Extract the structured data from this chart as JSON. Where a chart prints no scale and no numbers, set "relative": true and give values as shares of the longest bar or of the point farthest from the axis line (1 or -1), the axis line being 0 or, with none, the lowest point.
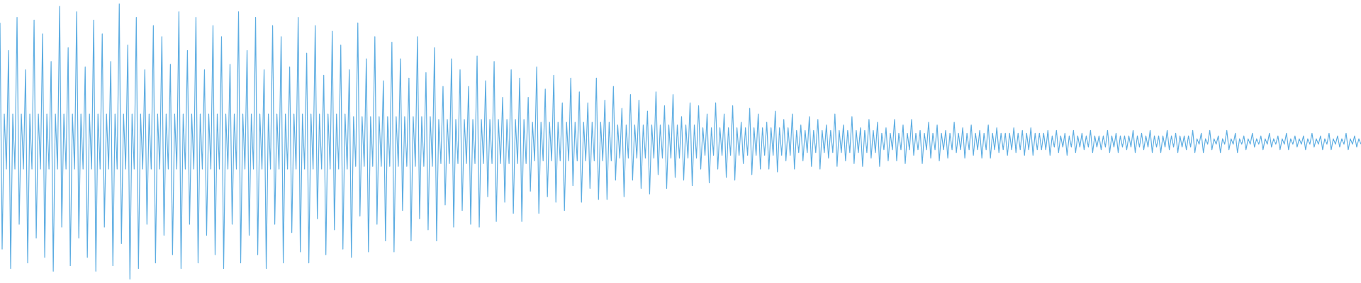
{
  "chart_data": {
    "type": "line",
    "relative": true,
    "legend": false,
    "grid": false,
    "marker": "none",
    "color": "#5dade2",
    "categories": [
      null,
      null,
      null,
      null,
      null,
      null,
      null,
      null,
      null,
      null,
      null,
      null,
      null,
      null,
      null,
      null,
      null,
      null,
      null,
      null,
      null,
      null,
      null,
      null,
      null,
      null,
      null,
      null,
      null,
      null,
      null,
      null,
      null,
      null,
      null,
      null,
      null,
      null,
      null,
      null,
      null,
      null,
      null,
      null,
      null,
      null,
      null,
      null,
      null,
      null,
      null,
      null,
      null,
      null,
      null,
      null,
      null,
      null,
      null,
      null,
      null,
      null,
      null,
      null,
      null,
      null,
      null,
      null,
      null,
      null,
      null,
      null,
      null,
      null,
      null,
      null,
      null,
      null,
      null,
      null,
      null,
      null,
      null,
      null,
      null,
      null,
      null,
      null,
      null,
      null,
      null,
      null,
      null,
      null,
      null,
      null,
      null,
      null,
      null,
      null,
      null,
      null,
      null,
      null,
      null,
      null,
      null,
      null,
      null,
      null,
      null,
      null,
      null,
      null,
      null,
      null,
      null,
      null,
      null,
      null,
      null,
      null,
      null,
      null,
      null,
      null,
      null,
      null,
      null,
      null,
      null,
      null,
      null,
      null,
      null,
      null,
      null,
      null,
      null,
      null,
      null,
      null,
      null,
      null,
      null,
      null,
      null,
      null,
      null,
      null,
      null,
      null,
      null,
      null,
      null,
      null,
      null,
      null,
      null,
      null,
      null,
      null,
      null,
      null,
      null,
      null,
      null,
      null,
      null,
      null,
      null,
      null,
      null,
      null,
      null,
      null,
      null,
      null,
      null,
      null,
      null,
      null,
      null,
      null,
      null,
      null,
      null,
      null,
      null,
      null,
      null,
      null,
      null,
      null,
      null,
      null,
      null,
      null,
      null,
      null,
      null,
      null,
      null,
      null,
      null,
      null,
      null,
      null,
      null,
      null,
      null,
      null,
      null,
      null,
      null,
      null,
      null,
      null,
      null,
      null,
      null,
      null,
      null,
      null,
      null,
      null,
      null,
      null,
      null,
      null,
      null,
      null,
      null,
      null,
      null,
      null,
      null,
      null,
      null,
      null,
      null,
      null,
      null,
      null,
      null,
      null,
      null,
      null,
      null,
      null,
      null,
      null,
      null,
      null,
      null,
      null,
      null,
      null,
      null,
      null,
      null,
      null,
      null,
      null,
      null,
      null,
      null,
      null,
      null,
      null,
      null,
      null,
      null,
      null,
      null,
      null,
      null,
      null,
      null,
      null,
      null,
      null,
      null,
      null,
      null,
      null,
      null,
      null,
      null,
      null,
      null,
      null,
      null,
      null,
      null,
      null,
      null,
      null,
      null,
      null,
      null,
      null,
      null,
      null,
      null,
      null,
      null,
      null,
      null,
      null,
      null,
      null,
      null,
      null,
      null,
      null,
      null,
      null,
      null,
      null,
      null,
      null,
      null,
      null,
      null,
      null,
      null,
      null,
      null,
      null,
      null,
      null,
      null,
      null,
      null,
      null,
      null,
      null,
      null,
      null,
      null,
      null,
      null,
      null,
      null,
      null,
      null,
      null,
      null,
      null,
      null,
      null,
      null,
      null,
      null,
      null,
      null,
      null,
      null,
      null,
      null,
      null,
      null,
      null,
      null,
      null,
      null,
      null,
      null,
      null,
      null,
      null,
      null,
      null,
      null,
      null,
      null,
      null,
      null,
      null,
      null,
      null,
      null,
      null,
      null,
      null,
      null,
      null,
      null,
      null,
      null,
      null,
      null,
      null,
      null,
      null,
      null,
      null,
      null,
      null,
      null,
      null,
      null,
      null,
      null,
      null,
      null,
      null,
      null,
      null,
      null,
      null,
      null,
      null,
      null,
      null,
      null,
      null,
      null,
      null,
      null,
      null,
      null,
      null,
      null,
      null,
      null,
      null,
      null,
      null,
      null,
      null,
      null,
      null,
      null,
      null,
      null,
      null,
      null,
      null,
      null,
      null,
      null,
      null,
      null,
      null,
      null,
      null,
      null,
      null,
      null,
      null,
      null,
      null,
      null,
      null,
      null,
      null,
      null,
      null,
      null,
      null,
      null,
      null,
      null,
      null,
      null,
      null,
      null,
      null,
      null,
      null,
      null,
      null,
      null,
      null,
      null,
      null,
      null,
      null,
      null,
      null,
      null,
      null,
      null,
      null,
      null,
      null,
      null,
      null,
      null,
      null,
      null,
      null,
      null,
      null,
      null,
      null,
      null,
      null,
      null,
      null,
      null,
      null,
      null,
      null,
      null,
      null,
      null,
      null,
      null,
      null,
      null,
      null,
      null,
      null,
      null,
      null,
      null,
      null,
      null,
      null,
      null,
      null,
      null,
      null,
      null,
      null,
      null,
      null,
      null,
      null,
      null,
      null,
      null,
      null,
      null,
      null,
      null,
      null,
      null,
      null,
      null,
      null,
      null,
      null,
      null,
      null,
      null,
      null,
      null,
      null,
      null,
      null,
      null,
      null,
      null,
      null,
      null,
      null,
      null,
      null,
      null,
      null,
      null,
      null,
      null,
      null,
      null,
      null,
      null,
      null,
      null,
      null,
      null,
      null,
      null,
      null,
      null,
      null,
      null,
      null,
      null,
      null,
      null,
      null,
      null,
      null,
      null,
      null,
      null,
      null,
      null,
      null,
      null,
      null,
      null,
      null,
      null,
      null,
      null,
      null,
      null,
      null,
      null,
      null,
      null,
      null,
      null,
      null,
      null,
      null,
      null,
      null,
      null,
      null,
      null,
      null,
      null,
      null,
      null,
      null,
      null,
      null,
      null,
      null,
      null,
      null,
      null,
      null,
      null,
      null,
      null,
      null,
      null,
      null,
      null,
      null,
      null,
      null
    ],
    "values": [
      0.93,
      0.11,
      0.6,
      0.4,
      0.83,
      0.04,
      0.6,
      0.4,
      0.95,
      0.2,
      0.6,
      0.4,
      0.76,
      0.06,
      0.6,
      0.4,
      0.94,
      0.15,
      0.6,
      0.4,
      0.89,
      0.08,
      0.6,
      0.4,
      0.79,
      0.03,
      0.6,
      0.4,
      0.99,
      0.19,
      0.6,
      0.4,
      0.84,
      0.05,
      0.6,
      0.4,
      0.97,
      0.15,
      0.6,
      0.4,
      0.77,
      0.08,
      0.6,
      0.4,
      0.94,
      0.03,
      0.6,
      0.4,
      0.89,
      0.19,
      0.6,
      0.4,
      0.79,
      0.05,
      0.6,
      0.4,
      1,
      0.13,
      0.6,
      0.4,
      0.85,
      0,
      0.6,
      0.4,
      0.95,
      0.04,
      0.6,
      0.4,
      0.76,
      0.2,
      0.6,
      0.4,
      0.92,
      0.06,
      0.6,
      0.4,
      0.88,
      0.16,
      0.6,
      0.4,
      0.78,
      0.09,
      0.6,
      0.4,
      0.97,
      0.04,
      0.6,
      0.4,
      0.83,
      0.2,
      0.6,
      0.4,
      0.95,
      0.06,
      0.6,
      0.4,
      0.76,
      0.16,
      0.6,
      0.4,
      0.92,
      0.09,
      0.6,
      0.4,
      0.88,
      0.04,
      0.6,
      0.4,
      0.78,
      0.2,
      0.6,
      0.4,
      0.97,
      0.06,
      0.6,
      0.4,
      0.83,
      0.16,
      0.6,
      0.4,
      0.95,
      0.09,
      0.6,
      0.4,
      0.76,
      0.04,
      0.6,
      0.4,
      0.92,
      0.2,
      0.6,
      0.4,
      0.88,
      0.06,
      0.6,
      0.4,
      0.77,
      0.17,
      0.6,
      0.4,
      0.95,
      0.1,
      0.6,
      0.4,
      0.82,
      0.06,
      0.6,
      0.4,
      0.92,
      0.22,
      0.6,
      0.4,
      0.74,
      0.09,
      0.6,
      0.4,
      0.9,
      0.18,
      0.6,
      0.4,
      0.85,
      0.11,
      0.6,
      0.4,
      0.76,
      0.08,
      0.59,
      0.41,
      0.93,
      0.23,
      0.59,
      0.41,
      0.8,
      0.1,
      0.59,
      0.41,
      0.88,
      0.2,
      0.59,
      0.41,
      0.72,
      0.14,
      0.59,
      0.41,
      0.86,
      0.1,
      0.59,
      0.41,
      0.8,
      0.25,
      0.59,
      0.41,
      0.73,
      0.14,
      0.59,
      0.41,
      0.88,
      0.22,
      0.59,
      0.41,
      0.75,
      0.18,
      0.59,
      0.41,
      0.84,
      0.14,
      0.58,
      0.42,
      0.7,
      0.27,
      0.58,
      0.42,
      0.8,
      0.19,
      0.58,
      0.42,
      0.76,
      0.25,
      0.58,
      0.42,
      0.7,
      0.2,
      0.58,
      0.42,
      0.81,
      0.19,
      0.58,
      0.42,
      0.72,
      0.3,
      0.58,
      0.42,
      0.79,
      0.21,
      0.58,
      0.42,
      0.66,
      0.28,
      0.58,
      0.42,
      0.76,
      0.24,
      0.58,
      0.42,
      0.73,
      0.21,
      0.58,
      0.42,
      0.66,
      0.32,
      0.57,
      0.43,
      0.77,
      0.24,
      0.57,
      0.43,
      0.69,
      0.3,
      0.57,
      0.43,
      0.74,
      0.28,
      0.57,
      0.43,
      0.64,
      0.25,
      0.57,
      0.43,
      0.73,
      0.34,
      0.57,
      0.43,
      0.68,
      0.28,
      0.57,
      0.43,
      0.64,
      0.33,
      0.57,
      0.43,
      0.73,
      0.29,
      0.57,
      0.43,
      0.65,
      0.29,
      0.57,
      0.43,
      0.7,
      0.36,
      0.56,
      0.44,
      0.62,
      0.3,
      0.56,
      0.44,
      0.67,
      0.36,
      0.56,
      0.44,
      0.65,
      0.33,
      0.56,
      0.44,
      0.61,
      0.31,
      0.56,
      0.44,
      0.68,
      0.38,
      0.56,
      0.44,
      0.63,
      0.33,
      0.56,
      0.44,
      0.67,
      0.37,
      0.56,
      0.44,
      0.59,
      0.36,
      0.56,
      0.44,
      0.64,
      0.34,
      0.56,
      0.44,
      0.63,
      0.4,
      0.55,
      0.45,
      0.6,
      0.35,
      0.55,
      0.45,
      0.64,
      0.4,
      0.55,
      0.45,
      0.6,
      0.37,
      0.55,
      0.45,
      0.63,
      0.36,
      0.55,
      0.45,
      0.57,
      0.42,
      0.55,
      0.45,
      0.62,
      0.38,
      0.55,
      0.45,
      0.6,
      0.4,
      0.55,
      0.45,
      0.57,
      0.4,
      0.55,
      0.45,
      0.61,
      0.39,
      0.55,
      0.45,
      0.58,
      0.43,
      0.55,
      0.45,
      0.6,
      0.4,
      0.54,
      0.46,
      0.56,
      0.43,
      0.54,
      0.46,
      0.59,
      0.41,
      0.54,
      0.46,
      0.58,
      0.4,
      0.54,
      0.46,
      0.56,
      0.44,
      0.54,
      0.46,
      0.6,
      0.41,
      0.54,
      0.46,
      0.56,
      0.43,
      0.54,
      0.46,
      0.59,
      0.42,
      0.54,
      0.46,
      0.55,
      0.41,
      0.54,
      0.46,
      0.58,
      0.44,
      0.54,
      0.46,
      0.57,
      0.41,
      0.53,
      0.47,
      0.55,
      0.43,
      0.53,
      0.47,
      0.58,
      0.43,
      0.53,
      0.47,
      0.56,
      0.42,
      0.53,
      0.47,
      0.58,
      0.45,
      0.53,
      0.47,
      0.54,
      0.42,
      0.53,
      0.47,
      0.57,
      0.44,
      0.53,
      0.47,
      0.56,
      0.43,
      0.53,
      0.47,
      0.54,
      0.44,
      0.53,
      0.47,
      0.57,
      0.46,
      0.53,
      0.47,
      0.55,
      0.44,
      0.53,
      0.47,
      0.56,
      0.45,
      0.53,
      0.47,
      0.54,
      0.44,
      0.53,
      0.47,
      0.56,
      0.44,
      0.53,
      0.47,
      0.55,
      0.46,
      0.53,
      0.47,
      0.53,
      0.45,
      0.53,
      0.47,
      0.55,
      0.46,
      0.53,
      0.47,
      0.54,
      0.45,
      0.53,
      0.47,
      0.55,
      0.45,
      0.53,
      0.47,
      0.53,
      0.47,
      0.53,
      0.47,
      0.54,
      0.45,
      0.52,
      0.48,
      0.54,
      0.46,
      0.52,
      0.48,
      0.53,
      0.45,
      0.52,
      0.48,
      0.54,
      0.46,
      0.52,
      0.48,
      0.53,
      0.47,
      0.52,
      0.48,
      0.54,
      0.46,
      0.52,
      0.48,
      0.52,
      0.47,
      0.52,
      0.48,
      0.54,
      0.46,
      0.52,
      0.48,
      0.53,
      0.46,
      0.52,
      0.48,
      0.52,
      0.47,
      0.52,
      0.48,
      0.54,
      0.46,
      0.52,
      0.48,
      0.53,
      0.47,
      0.52,
      0.48,
      0.54,
      0.46,
      0.52,
      0.48,
      0.52,
      0.46,
      0.52,
      0.48,
      0.54,
      0.47,
      0.52,
      0.48,
      0.53,
      0.46,
      0.52,
      0.48,
      0.52,
      0.47,
      0.52,
      0.48,
      0.54,
      0.46,
      0.51,
      0.49,
      0.53,
      0.46,
      0.51,
      0.49,
      0.54,
      0.47,
      0.51,
      0.49,
      0.52,
      0.46,
      0.51,
      0.49,
      0.54,
      0.47,
      0.51,
      0.49,
      0.53,
      0.46,
      0.51,
      0.49,
      0.52,
      0.47,
      0.51,
      0.49,
      0.53,
      0.48,
      0.51,
      0.49,
      0.52,
      0.47,
      0.51,
      0.49,
      0.53,
      0.48,
      0.51,
      0.49,
      0.52,
      0.47,
      0.51,
      0.49,
      0.53,
      0.47,
      0.51,
      0.49,
      0.52,
      0.48,
      0.51,
      0.49,
      0.52,
      0.47,
      0.51,
      0.49,
      0.53,
      0.48,
      0.51,
      0.49,
      0.52,
      0.47,
      0.51,
      0.49,
      0.53,
      0.47,
      0.51,
      0.49,
      0.52,
      0.48,
      0.51,
      0.49,
      0.53,
      0.47,
      0.51,
      0.49,
      0.52,
      0.48,
      0.51,
      0.49
    ]
  }
}
